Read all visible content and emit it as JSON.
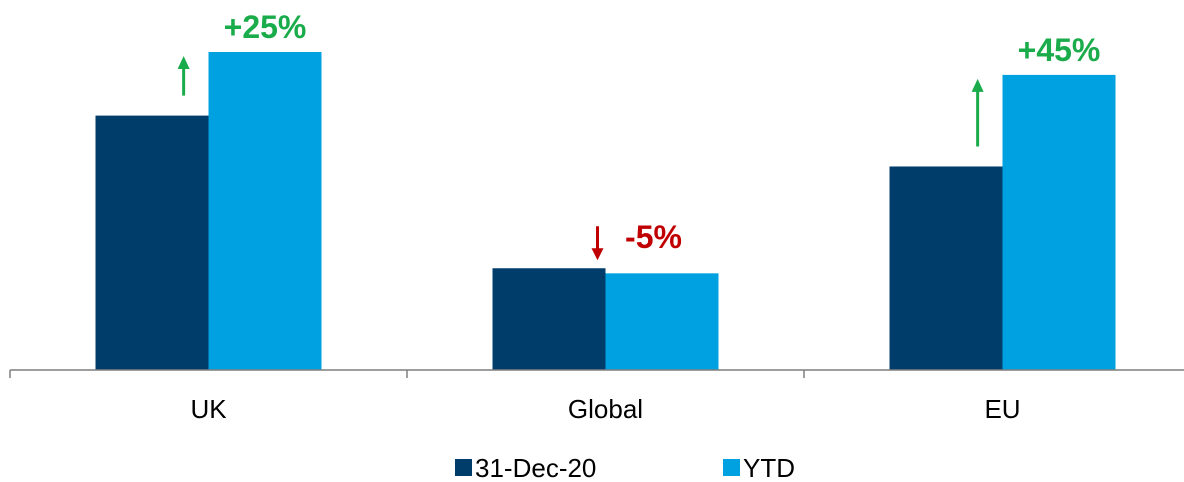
{
  "colors": {
    "series_dark": "#003d6b",
    "series_light": "#00a1e0",
    "up": "#1aab4a",
    "down": "#c00000",
    "axis": "#7f7f7f"
  },
  "chart_data": {
    "type": "bar",
    "title": "",
    "xlabel": "",
    "ylabel": "",
    "categories": [
      "UK",
      "Global",
      "EU"
    ],
    "series": [
      {
        "name": "31-Dec-20",
        "values": [
          100,
          40,
          80
        ]
      },
      {
        "name": "YTD",
        "values": [
          125,
          38,
          116
        ]
      }
    ],
    "ylim": [
      0,
      130
    ],
    "grid": false,
    "legend_position": "bottom",
    "annotations": [
      {
        "category": "UK",
        "text": "+25%",
        "direction": "up"
      },
      {
        "category": "Global",
        "text": "-5%",
        "direction": "down"
      },
      {
        "category": "EU",
        "text": "+45%",
        "direction": "up"
      }
    ]
  }
}
